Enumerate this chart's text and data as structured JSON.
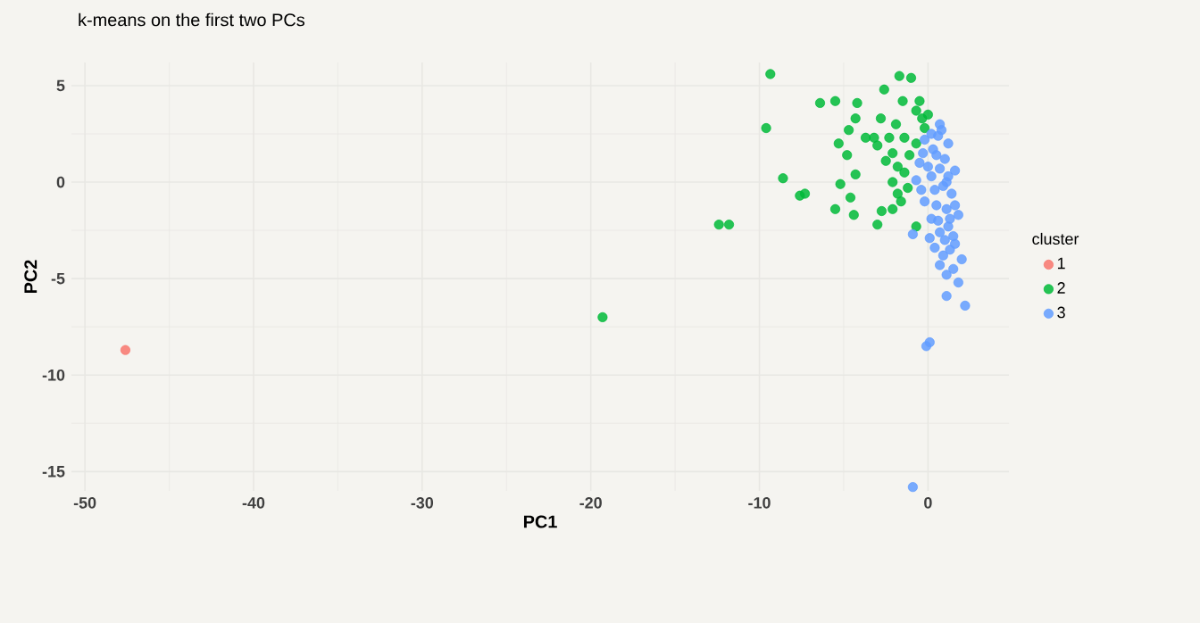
{
  "chart_data": {
    "type": "scatter",
    "title": "k-means on the first two PCs",
    "xlabel": "PC1",
    "ylabel": "PC2",
    "legend_title": "cluster",
    "legend": "right",
    "grid": true,
    "marker": "circle",
    "xlim": [
      -50.8,
      4.8
    ],
    "ylim": [
      -16.0,
      6.2
    ],
    "xticks": [
      -50,
      -40,
      -30,
      -20,
      -10,
      0
    ],
    "yticks": [
      -15,
      -10,
      -5,
      0,
      5
    ],
    "series": [
      {
        "name": "1",
        "color": "#F8766D",
        "x": [
          -47.6
        ],
        "values": [
          -8.7
        ]
      },
      {
        "name": "2",
        "color": "#00BA38",
        "x": [
          -19.3,
          -12.4,
          -11.8,
          -9.35,
          -9.6,
          -8.6,
          -7.6,
          -7.3,
          -6.4,
          -5.5,
          -4.2,
          -4.3,
          -4.7,
          -5.3,
          -4.8,
          -3.7,
          -4.3,
          -5.2,
          -4.6,
          -5.5,
          -4.4,
          -3.0,
          -2.75,
          -2.1,
          -2.6,
          -1.7,
          -1.0,
          -1.5,
          -2.8,
          -1.9,
          -3.0,
          -2.5,
          -2.1,
          -1.6,
          -0.7,
          -0.7,
          -0.35,
          -1.4,
          -1.1,
          -1.8,
          -1.4,
          -0.7,
          -0.2,
          0.0,
          -0.5,
          -2.1,
          -1.2,
          -1.8,
          -2.3,
          -3.2
        ],
        "values": [
          -7.0,
          -2.2,
          -2.2,
          5.6,
          2.8,
          0.2,
          -0.7,
          -0.6,
          4.1,
          4.2,
          4.1,
          3.3,
          2.7,
          2.0,
          1.4,
          2.3,
          0.4,
          -0.1,
          -0.8,
          -1.4,
          -1.7,
          -2.2,
          -1.5,
          -1.4,
          4.8,
          5.5,
          5.4,
          4.2,
          3.3,
          3.0,
          1.9,
          1.1,
          0.0,
          -1.0,
          -2.3,
          3.7,
          3.3,
          2.3,
          1.4,
          0.8,
          0.5,
          2.0,
          2.8,
          3.5,
          4.2,
          1.5,
          -0.3,
          -0.6,
          2.3,
          2.3
        ]
      },
      {
        "name": "3",
        "color": "#619CFF",
        "x": [
          0.7,
          0.8,
          1.2,
          0.3,
          -0.5,
          0.7,
          1.6,
          -0.7,
          0.4,
          1.4,
          -0.2,
          1.1,
          1.8,
          0.2,
          1.2,
          -0.9,
          0.4,
          1.6,
          0.9,
          2.0,
          1.1,
          1.8,
          1.1,
          2.2,
          -0.2,
          0.2,
          1.1,
          0.7,
          1.6,
          0.1,
          -0.1,
          -0.9,
          0.2,
          0.5,
          1.0,
          0.0,
          0.9,
          -0.4,
          0.5,
          1.3,
          0.6,
          1.5,
          0.1,
          1.0,
          1.3,
          0.7,
          1.5,
          1.2,
          -0.3,
          0.6
        ],
        "values": [
          3.0,
          2.7,
          2.0,
          1.7,
          1.0,
          0.7,
          0.6,
          0.1,
          -0.4,
          -0.6,
          -1.0,
          -1.4,
          -1.7,
          -1.9,
          -2.3,
          -2.7,
          -3.4,
          -3.2,
          -3.8,
          -4.0,
          -4.8,
          -5.2,
          -5.9,
          -6.4,
          2.2,
          0.3,
          0.0,
          -2.6,
          -1.2,
          -8.3,
          -8.5,
          -15.8,
          2.5,
          1.4,
          1.2,
          0.8,
          -0.2,
          -0.4,
          -1.2,
          -1.9,
          -2.0,
          -2.8,
          -2.9,
          -3.0,
          -3.5,
          -4.3,
          -4.5,
          0.3,
          1.5,
          2.4
        ]
      }
    ]
  }
}
